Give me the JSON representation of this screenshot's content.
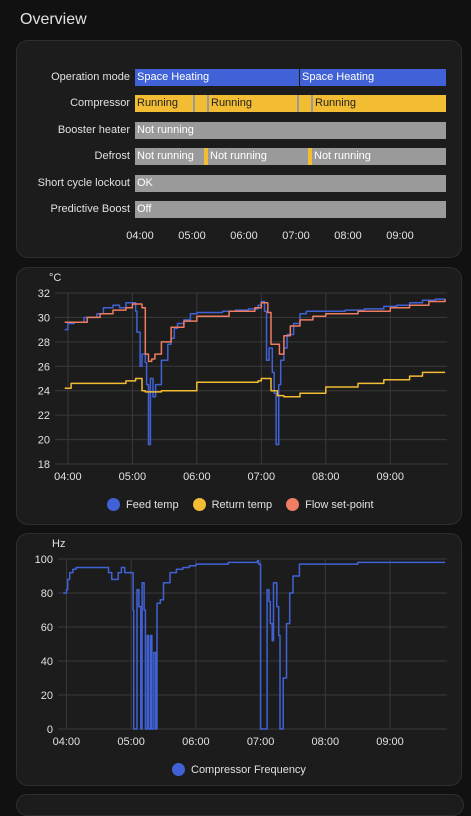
{
  "page": {
    "title": "Overview"
  },
  "colors": {
    "blue": "#4062d6",
    "yellow": "#f2bc33",
    "gray": "#9a9a9a",
    "orange": "#ee7d61"
  },
  "timeline": {
    "axis_labels": [
      "04:00",
      "05:00",
      "06:00",
      "07:00",
      "08:00",
      "09:00"
    ],
    "rows": [
      {
        "label": "Operation mode",
        "segments": [
          {
            "text": "Space Heating",
            "color": "blue"
          },
          {
            "text": "Space Heating",
            "color": "blue"
          }
        ]
      },
      {
        "label": "Compressor",
        "segments": [
          {
            "text": "Running",
            "color": "yellow"
          },
          {
            "text": "",
            "color": "gray"
          },
          {
            "text": "",
            "color": "yellow"
          },
          {
            "text": "",
            "color": "gray"
          },
          {
            "text": "Running",
            "color": "yellow"
          },
          {
            "text": "",
            "color": "gray"
          },
          {
            "text": "",
            "color": "yellow"
          },
          {
            "text": "",
            "color": "gray"
          },
          {
            "text": "Running",
            "color": "yellow"
          }
        ]
      },
      {
        "label": "Booster heater",
        "segments": [
          {
            "text": "Not running",
            "color": "gray"
          }
        ]
      },
      {
        "label": "Defrost",
        "segments": [
          {
            "text": "Not running",
            "color": "gray"
          },
          {
            "text": "",
            "color": "yellow"
          },
          {
            "text": "Not running",
            "color": "gray"
          },
          {
            "text": "",
            "color": "yellow"
          },
          {
            "text": "Not running",
            "color": "gray"
          }
        ]
      },
      {
        "label": "Short cycle lockout",
        "segments": [
          {
            "text": "OK",
            "color": "gray"
          }
        ]
      },
      {
        "label": "Predictive Boost",
        "segments": [
          {
            "text": "Off",
            "color": "gray"
          }
        ]
      }
    ]
  },
  "chart_data": [
    {
      "type": "line",
      "ylabel": "°C",
      "ylim": [
        18,
        32
      ],
      "yticks": [
        "18",
        "20",
        "22",
        "24",
        "26",
        "28",
        "30",
        "32"
      ],
      "xticks": [
        "04:00",
        "05:00",
        "06:00",
        "07:00",
        "08:00",
        "09:00"
      ],
      "grid": true,
      "legend": "bottom",
      "series": [
        {
          "name": "Feed temp",
          "color": "#4062d6",
          "x": [
            3.95,
            4.0,
            4.1,
            4.25,
            4.45,
            4.55,
            4.7,
            4.8,
            4.9,
            5.0,
            5.05,
            5.07,
            5.12,
            5.15,
            5.2,
            5.22,
            5.25,
            5.28,
            5.32,
            5.36,
            5.45,
            5.55,
            5.6,
            5.65,
            5.7,
            5.8,
            5.9,
            6.0,
            6.2,
            6.4,
            6.6,
            6.8,
            6.95,
            7.0,
            7.05,
            7.08,
            7.12,
            7.17,
            7.2,
            7.23,
            7.27,
            7.3,
            7.35,
            7.4,
            7.5,
            7.6,
            7.7,
            7.8,
            8.0,
            8.3,
            8.6,
            8.9,
            9.1,
            9.3,
            9.5,
            9.7,
            9.85
          ],
          "y": [
            29.0,
            29.5,
            29.6,
            30.0,
            30.3,
            30.8,
            31.0,
            30.8,
            31.2,
            31.2,
            30.5,
            28.8,
            26.0,
            27.0,
            26.3,
            24.5,
            19.6,
            25.0,
            23.5,
            24.5,
            26.5,
            27.8,
            28.3,
            29.1,
            29.5,
            29.8,
            30.3,
            30.4,
            30.4,
            30.5,
            30.6,
            30.7,
            31.0,
            31.3,
            30.5,
            26.5,
            27.5,
            25.5,
            23.8,
            19.6,
            24.5,
            26.5,
            27.5,
            28.6,
            29.5,
            30.3,
            30.5,
            30.5,
            30.5,
            30.6,
            30.7,
            30.9,
            31.0,
            31.2,
            31.4,
            31.5,
            31.5
          ]
        },
        {
          "name": "Return temp",
          "color": "#f2bc33",
          "x": [
            3.95,
            4.05,
            4.4,
            4.8,
            4.9,
            5.05,
            5.15,
            5.2,
            5.45,
            6.0,
            6.5,
            6.95,
            7.0,
            7.15,
            7.25,
            7.35,
            7.6,
            8.0,
            8.5,
            8.9,
            9.3,
            9.5,
            9.85
          ],
          "y": [
            24.2,
            24.6,
            24.6,
            24.6,
            24.8,
            25.0,
            24.0,
            23.9,
            24.0,
            24.7,
            24.7,
            24.8,
            25.0,
            24.0,
            23.6,
            23.5,
            23.8,
            24.3,
            24.6,
            24.9,
            25.2,
            25.5,
            25.5
          ]
        },
        {
          "name": "Flow set-point",
          "color": "#ee7d61",
          "x": [
            3.95,
            4.3,
            4.5,
            4.7,
            4.9,
            5.0,
            5.15,
            5.2,
            5.25,
            5.3,
            5.35,
            5.45,
            5.6,
            5.8,
            6.0,
            6.5,
            6.9,
            7.0,
            7.1,
            7.15,
            7.28,
            7.35,
            7.45,
            7.6,
            7.8,
            8.0,
            8.5,
            9.0,
            9.3,
            9.6,
            9.85
          ],
          "y": [
            29.6,
            30.0,
            30.3,
            30.6,
            30.8,
            31.1,
            30.8,
            27.0,
            26.4,
            26.6,
            27.0,
            28.0,
            29.2,
            29.7,
            30.1,
            30.5,
            30.8,
            31.2,
            30.4,
            27.8,
            27.0,
            28.5,
            29.3,
            29.8,
            30.1,
            30.3,
            30.5,
            30.8,
            31.0,
            31.3,
            31.5
          ]
        }
      ]
    },
    {
      "type": "line",
      "ylabel": "Hz",
      "ylim": [
        0,
        100
      ],
      "yticks": [
        "0",
        "20",
        "40",
        "60",
        "80",
        "100"
      ],
      "xticks": [
        "04:00",
        "05:00",
        "06:00",
        "07:00",
        "08:00",
        "09:00"
      ],
      "grid": true,
      "legend": "bottom",
      "series": [
        {
          "name": "Compressor Frequency",
          "color": "#4062d6",
          "x": [
            3.95,
            4.0,
            4.02,
            4.05,
            4.1,
            4.15,
            4.2,
            4.6,
            4.65,
            4.7,
            4.8,
            4.85,
            4.9,
            5.0,
            5.03,
            5.04,
            5.08,
            5.09,
            5.12,
            5.15,
            5.17,
            5.2,
            5.22,
            5.25,
            5.27,
            5.3,
            5.32,
            5.35,
            5.38,
            5.4,
            5.45,
            5.5,
            5.6,
            5.7,
            5.8,
            5.9,
            6.0,
            6.2,
            6.5,
            6.8,
            6.95,
            6.97,
            7.0,
            7.05,
            7.1,
            7.13,
            7.15,
            7.18,
            7.2,
            7.25,
            7.28,
            7.3,
            7.35,
            7.4,
            7.45,
            7.5,
            7.6,
            7.8,
            8.0,
            8.5,
            9.0,
            9.5,
            9.85
          ],
          "y": [
            80,
            82,
            88,
            92,
            94,
            95,
            95,
            95,
            92,
            88,
            92,
            95,
            92,
            92,
            70,
            0,
            0,
            82,
            72,
            0,
            86,
            70,
            0,
            55,
            0,
            55,
            0,
            45,
            0,
            74,
            76,
            86,
            92,
            94,
            95,
            96,
            97,
            97,
            98,
            98,
            99,
            97,
            0,
            0,
            82,
            75,
            62,
            52,
            86,
            72,
            55,
            0,
            30,
            62,
            80,
            90,
            97,
            97,
            97,
            98,
            98,
            98,
            98
          ]
        }
      ]
    }
  ]
}
